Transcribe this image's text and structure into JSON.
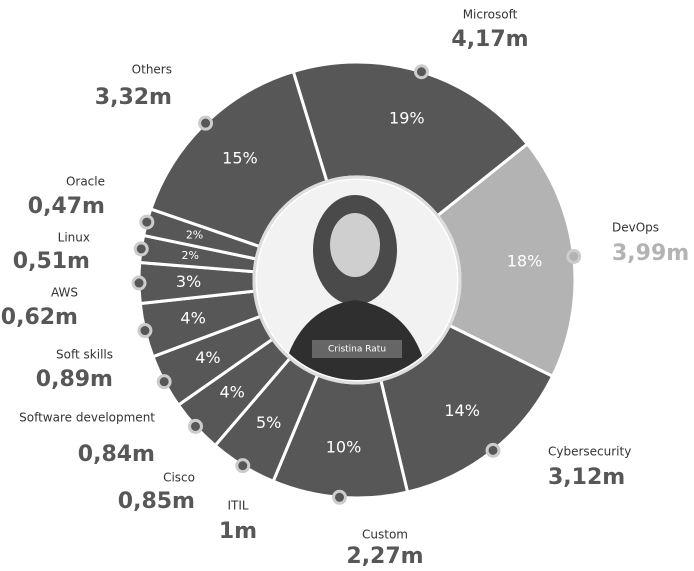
{
  "chart_data": {
    "type": "donut",
    "categories": [
      "Microsoft",
      "DevOps",
      "Cybersecurity",
      "Custom",
      "ITIL",
      "Cisco",
      "Software development",
      "Soft skills",
      "AWS",
      "Linux",
      "Oracle",
      "Others"
    ],
    "values": [
      19,
      18,
      14,
      10,
      5,
      4,
      4,
      4,
      3,
      2,
      2,
      15
    ],
    "value_labels": [
      "19%",
      "18%",
      "14%",
      "10%",
      "5%",
      "4%",
      "4%",
      "4%",
      "3%",
      "2%",
      "2%",
      "15%"
    ],
    "amounts": [
      4.17,
      3.99,
      3.12,
      2.27,
      1,
      0.85,
      0.84,
      0.89,
      0.62,
      0.51,
      0.47,
      3.32
    ],
    "amount_labels": [
      "4,17m",
      "3,99m",
      "3,12m",
      "2,27m",
      "1m",
      "0,85m",
      "0,84m",
      "0,89m",
      "0,62m",
      "0,51m",
      "0,47m",
      "3,32m"
    ],
    "colors": [
      "#575757",
      "#b3b3b3",
      "#575757",
      "#575757",
      "#575757",
      "#575757",
      "#575757",
      "#575757",
      "#575757",
      "#575757",
      "#575757",
      "#575757"
    ],
    "center_caption": "Cristina Ratu"
  }
}
